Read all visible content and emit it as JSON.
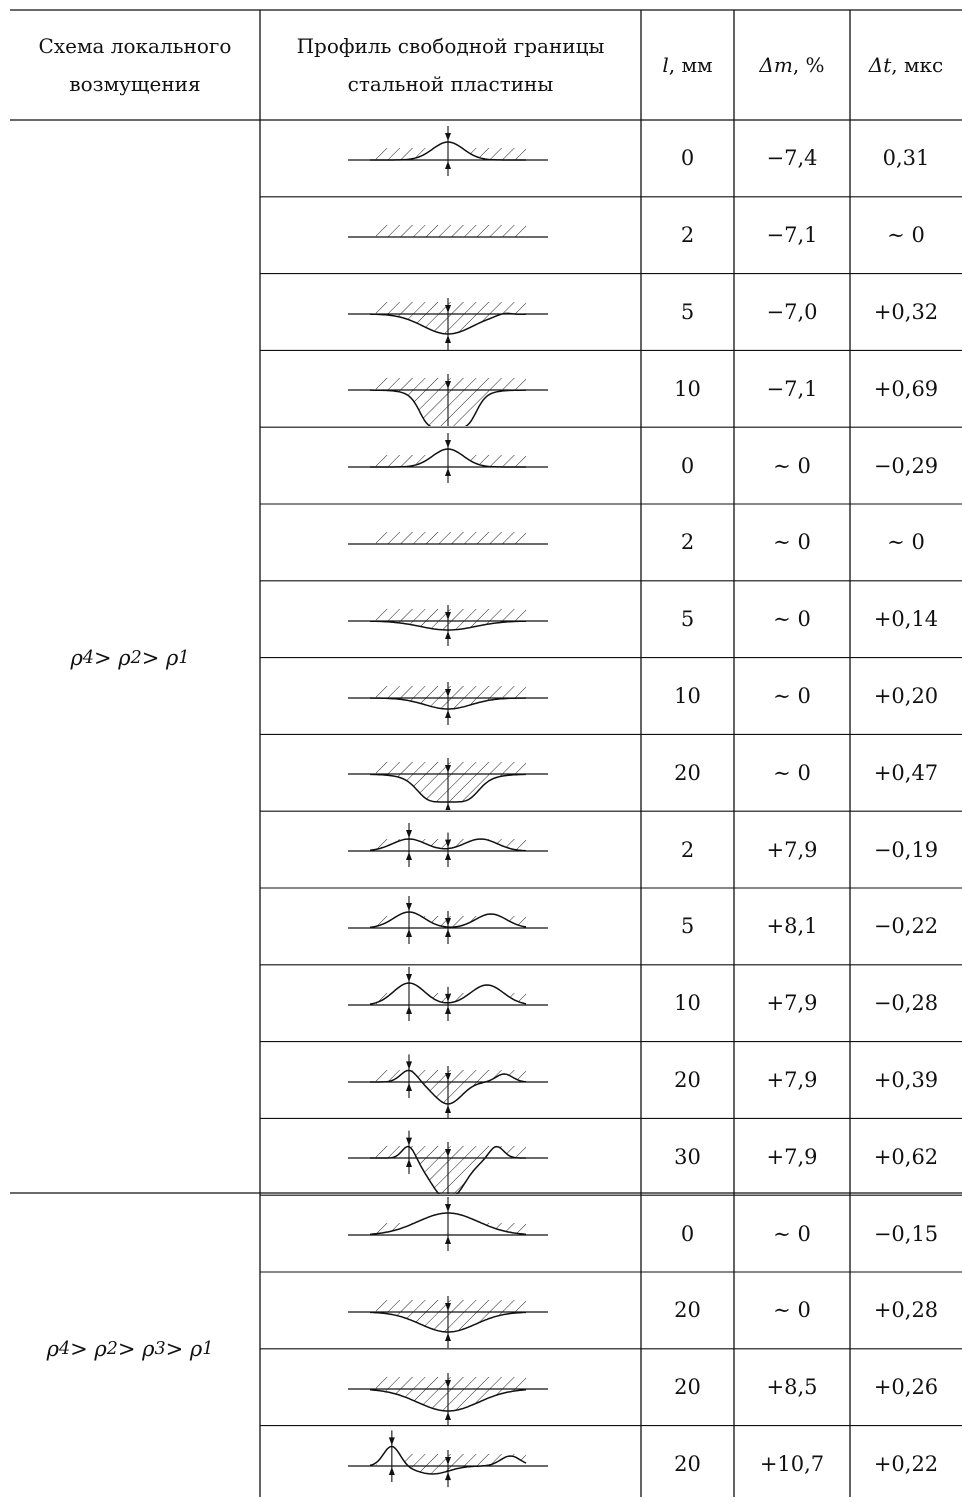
{
  "headers": {
    "scheme": "Схема локального возмущения",
    "scheme_l1": "Схема локального",
    "scheme_l2": "возмущения",
    "profile_l1": "Профиль свободной границы",
    "profile_l2": "стальной пластины",
    "l_sym": "l",
    "l_unit": ", мм",
    "dm_sym": "Δm",
    "dm_unit": ", %",
    "dt_sym": "Δt",
    "dt_unit": ", мкс"
  },
  "groups": [
    {
      "scheme": "ρ4 > ρ2 > ρ1",
      "scheme_html": "ρ<sub>4</sub> &gt; ρ<sub>2</sub> &gt; ρ<sub>1</sub>",
      "rows": 14
    },
    {
      "scheme": "ρ4 > ρ2 > ρ3 > ρ1",
      "scheme_html": "ρ<sub>4</sub> &gt; ρ<sub>2</sub> &gt; ρ<sub>3</sub> &gt; ρ<sub>1</sub>",
      "rows": 4
    }
  ],
  "rows": [
    {
      "l": "0",
      "dm": "−7,4",
      "dt": "0,31",
      "profile": "bump"
    },
    {
      "l": "2",
      "dm": "−7,1",
      "dt": "∼ 0",
      "profile": "flat"
    },
    {
      "l": "5",
      "dm": "−7,0",
      "dt": "+0,32",
      "profile": "shallow-dip"
    },
    {
      "l": "10",
      "dm": "−7,1",
      "dt": "+0,69",
      "profile": "deep-dip"
    },
    {
      "l": "0",
      "dm": "∼ 0",
      "dt": "−0,29",
      "profile": "bump"
    },
    {
      "l": "2",
      "dm": "∼ 0",
      "dt": "∼ 0",
      "profile": "flat"
    },
    {
      "l": "5",
      "dm": "∼ 0",
      "dt": "+0,14",
      "profile": "tiny-dip"
    },
    {
      "l": "10",
      "dm": "∼ 0",
      "dt": "+0,20",
      "profile": "small-dip"
    },
    {
      "l": "20",
      "dm": "∼ 0",
      "dt": "+0,47",
      "profile": "medium-dip"
    },
    {
      "l": "2",
      "dm": "+7,9",
      "dt": "−0,19",
      "profile": "double-bump"
    },
    {
      "l": "5",
      "dm": "+8,1",
      "dt": "−0,22",
      "profile": "double-bump-2"
    },
    {
      "l": "10",
      "dm": "+7,9",
      "dt": "−0,28",
      "profile": "double-bump-3"
    },
    {
      "l": "20",
      "dm": "+7,9",
      "dt": "+0,39",
      "profile": "bump-dip"
    },
    {
      "l": "30",
      "dm": "+7,9",
      "dt": "+0,62",
      "profile": "bump-deep-dip"
    },
    {
      "l": "0",
      "dm": "∼ 0",
      "dt": "−0,15",
      "profile": "wide-bump"
    },
    {
      "l": "20",
      "dm": "∼ 0",
      "dt": "+0,28",
      "profile": "wide-dip"
    },
    {
      "l": "20",
      "dm": "+8,5",
      "dt": "+0,26",
      "profile": "wide-dip-2"
    },
    {
      "l": "20",
      "dm": "+10,7",
      "dt": "+0,22",
      "profile": "wave"
    }
  ]
}
